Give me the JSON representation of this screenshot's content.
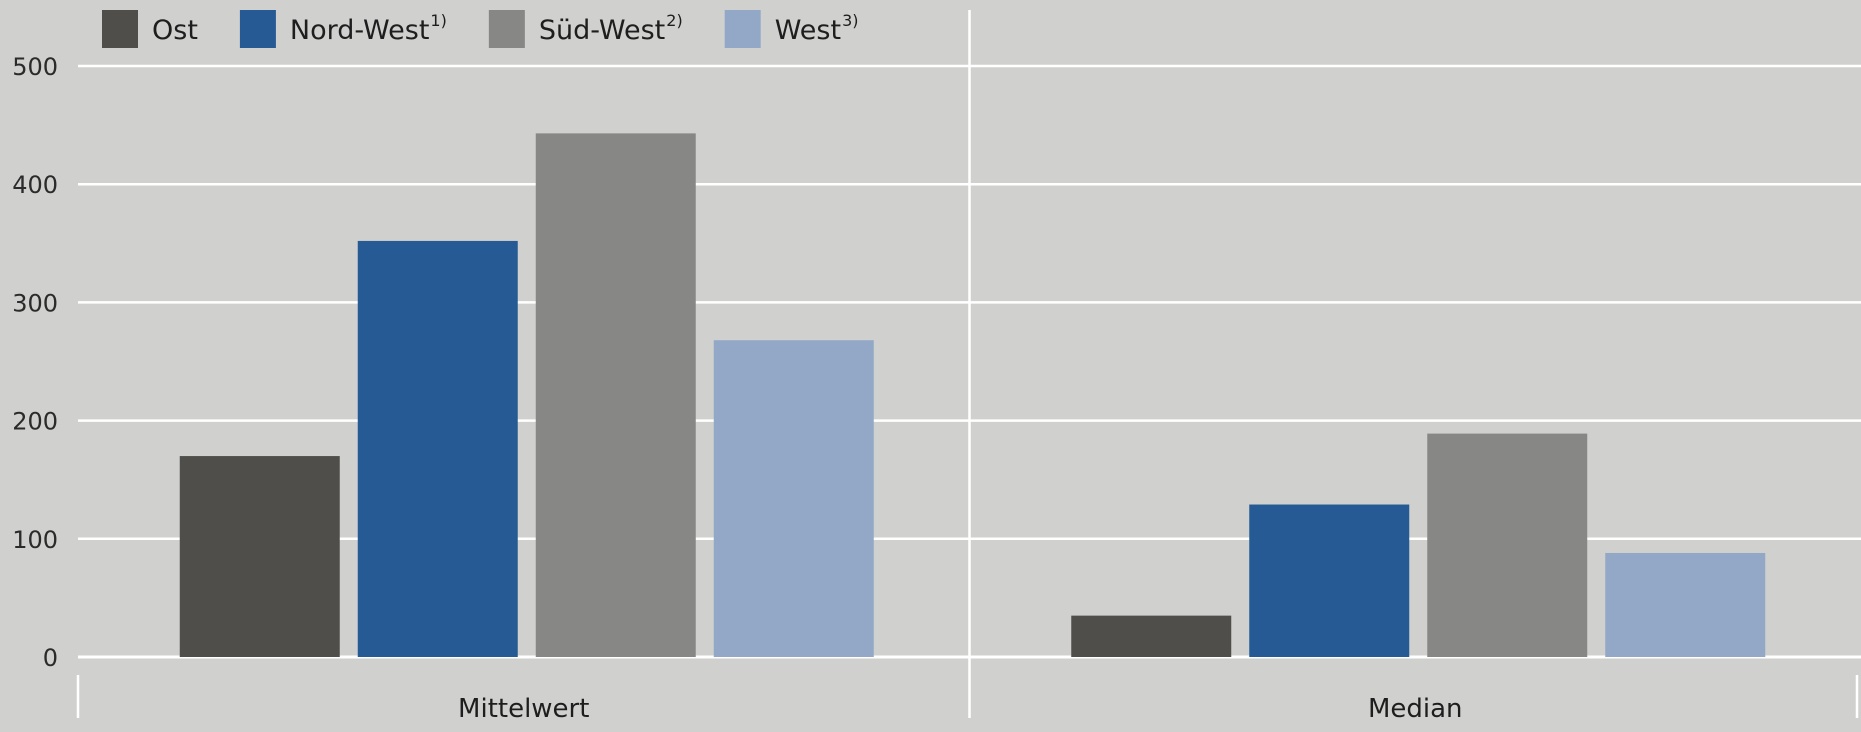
{
  "chart_data": {
    "type": "bar",
    "categories": [
      "Mittelwert",
      "Median"
    ],
    "series": [
      {
        "name": "Ost",
        "sup": "",
        "color": "#4f4e4a",
        "values": [
          170,
          35
        ]
      },
      {
        "name": "Nord-West",
        "sup": "1)",
        "color": "#255a94",
        "values": [
          352,
          129
        ]
      },
      {
        "name": "Süd-West",
        "sup": "2)",
        "color": "#878785",
        "values": [
          443,
          189
        ]
      },
      {
        "name": "West",
        "sup": "3)",
        "color": "#93a7c7",
        "values": [
          268,
          88
        ]
      }
    ],
    "ylim": [
      0,
      500
    ],
    "yticks": [
      0,
      100,
      200,
      300,
      400,
      500
    ],
    "grid": true,
    "legend_position": "top-left",
    "title": "",
    "xlabel": "",
    "ylabel": ""
  }
}
